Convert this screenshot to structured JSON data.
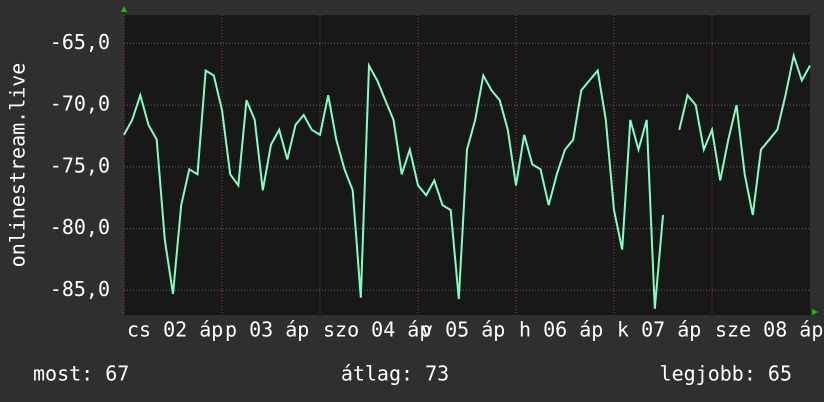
{
  "chart_data": {
    "type": "line",
    "ylabel": "onlinestream.live",
    "color": "#80ffc0",
    "grid": true,
    "x": [
      0,
      2,
      4,
      6,
      8,
      10,
      12,
      14,
      16,
      18,
      20,
      22,
      24,
      26,
      28,
      30,
      32,
      34,
      36,
      38,
      40,
      42,
      44,
      46,
      48,
      50,
      52,
      54,
      56,
      58,
      60,
      62,
      64,
      66,
      68,
      70,
      72,
      74,
      76,
      78,
      80,
      82,
      84,
      86,
      88,
      90,
      92,
      94,
      96,
      98,
      100,
      102,
      104,
      106,
      108,
      110,
      112,
      114,
      116,
      118,
      120,
      122,
      124,
      126,
      128,
      130,
      132,
      134,
      136,
      138,
      140,
      142,
      144,
      146,
      148,
      150,
      152,
      154,
      156,
      158,
      160,
      162,
      164,
      166,
      168
    ],
    "values": [
      -72.4,
      -71.2,
      -69.2,
      -71.6,
      -72.8,
      -80.9,
      -85.3,
      -78.1,
      -75.2,
      -75.6,
      -67.2,
      -67.6,
      -70.4,
      -75.6,
      -76.5,
      -69.6,
      -71.2,
      -76.9,
      -73.2,
      -72.0,
      -74.4,
      -71.6,
      -70.8,
      -72.0,
      -72.4,
      -69.2,
      -72.8,
      -75.2,
      -76.9,
      -85.6,
      -66.8,
      -68.0,
      -69.6,
      -71.2,
      -75.6,
      -73.6,
      -76.5,
      -77.3,
      -76.1,
      -78.1,
      -78.5,
      -85.7,
      -73.6,
      -71.2,
      -67.6,
      -68.8,
      -69.6,
      -72.0,
      -76.5,
      -72.4,
      -74.8,
      -75.2,
      -78.1,
      -75.6,
      -73.6,
      -72.8,
      -68.8,
      -68.0,
      -67.2,
      -71.2,
      -78.5,
      -81.7,
      -71.2,
      -73.6,
      -71.2,
      -86.5,
      -78.9,
      null,
      -72.0,
      -69.2,
      -70.0,
      -73.6,
      -72.0,
      -76.1,
      -72.8,
      -70.0,
      -75.6,
      -78.9,
      -73.6,
      -72.8,
      -72.0,
      -69.2,
      -66.0,
      -68.0,
      -66.8
    ],
    "xlim": [
      0,
      168
    ],
    "xticks": [
      {
        "value": 0,
        "label": "cs 02 áp"
      },
      {
        "value": 24,
        "label": "p 03 áp"
      },
      {
        "value": 48,
        "label": "szo 04 áp"
      },
      {
        "value": 72,
        "label": "v 05 áp"
      },
      {
        "value": 96,
        "label": "h 06 áp"
      },
      {
        "value": 120,
        "label": "k 07 áp"
      },
      {
        "value": 144,
        "label": "sze 08 áp"
      }
    ],
    "ylim": [
      -87,
      -62.7
    ],
    "yticks": [
      {
        "value": -65,
        "label": "-65,0"
      },
      {
        "value": -70,
        "label": "-70,0"
      },
      {
        "value": -75,
        "label": "-75,0"
      },
      {
        "value": -80,
        "label": "-80,0"
      },
      {
        "value": -85,
        "label": "-85,0"
      }
    ],
    "footer": [
      "most: 67",
      "átlag: 73",
      "legjobb: 65"
    ]
  }
}
